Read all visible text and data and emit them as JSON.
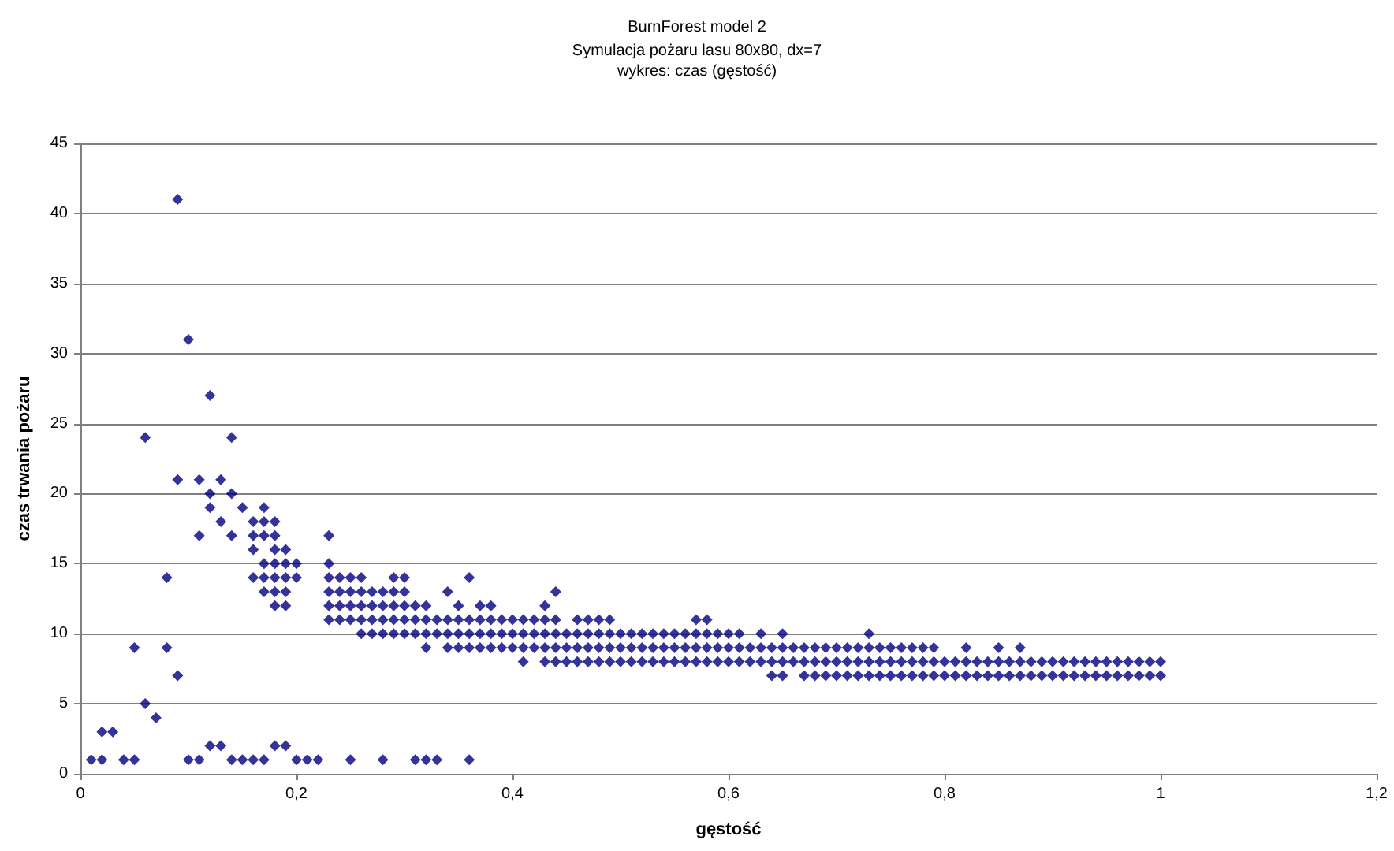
{
  "chart_data": {
    "type": "scatter",
    "title": "BurnForest model 2",
    "subtitle": "Symulacja pożaru lasu 80x80, dx=7\nwykres: czas (gęstość)",
    "xlabel": "gęstość",
    "ylabel": "czas trwania pożaru",
    "xlim": [
      0,
      1.2
    ],
    "xticks": [
      0,
      {
        "value": 0.2,
        "label": "0,2"
      },
      {
        "value": 0.4,
        "label": "0,4"
      },
      {
        "value": 0.6,
        "label": "0,6"
      },
      {
        "value": 0.8,
        "label": "0,8"
      },
      1,
      {
        "value": 1.2,
        "label": "1,2"
      }
    ],
    "ylim": [
      0,
      45
    ],
    "yticks": [
      0,
      5,
      10,
      15,
      20,
      25,
      30,
      35,
      40,
      45
    ],
    "grid": "y",
    "marker": "diamond",
    "series": [
      {
        "color": "#000080",
        "x": [
          0.01,
          0.02,
          0.04,
          0.05,
          0.1,
          0.11,
          0.14,
          0.15,
          0.16,
          0.17,
          0.2,
          0.21,
          0.22,
          0.25,
          0.28,
          0.31,
          0.32,
          0.33,
          0.36
        ],
        "values": [
          1,
          1,
          1,
          1,
          1,
          1,
          1,
          1,
          1,
          1,
          1,
          1,
          1,
          1,
          1,
          1,
          1,
          1,
          1
        ]
      },
      {
        "color": "#000080",
        "x": [
          0.12,
          0.13,
          0.18,
          0.19
        ],
        "values": [
          2,
          2,
          2,
          2
        ]
      },
      {
        "color": "#000080",
        "x": [
          0.02,
          0.03
        ],
        "values": [
          3,
          3
        ]
      },
      {
        "color": "#000080",
        "x": [
          0.07
        ],
        "values": [
          4
        ]
      },
      {
        "color": "#000080",
        "x": [
          0.06
        ],
        "values": [
          5
        ]
      },
      {
        "color": "#000080",
        "x": [
          0.09,
          0.64,
          0.65,
          0.67,
          0.68,
          0.69,
          0.7,
          0.71,
          0.72,
          0.73,
          0.74,
          0.75,
          0.76,
          0.77,
          0.78,
          0.79,
          0.8,
          0.81,
          0.82,
          0.83,
          0.84,
          0.85,
          0.86,
          0.87,
          0.88,
          0.89,
          0.9,
          0.91,
          0.92,
          0.93,
          0.94,
          0.95,
          0.96,
          0.97,
          0.98,
          0.99,
          1
        ],
        "values": [
          7,
          7,
          7,
          7,
          7,
          7,
          7,
          7,
          7,
          7,
          7,
          7,
          7,
          7,
          7,
          7,
          7,
          7,
          7,
          7,
          7,
          7,
          7,
          7,
          7,
          7,
          7,
          7,
          7,
          7,
          7,
          7,
          7,
          7,
          7,
          7,
          7
        ]
      },
      {
        "color": "#000080",
        "x": [
          0.41,
          0.43,
          0.44,
          0.45,
          0.46,
          0.47,
          0.48,
          0.49,
          0.5,
          0.51,
          0.52,
          0.53,
          0.54,
          0.55,
          0.56,
          0.57,
          0.58,
          0.59,
          0.6,
          0.61,
          0.62,
          0.63,
          0.64,
          0.65,
          0.66,
          0.67,
          0.68,
          0.69,
          0.7,
          0.71,
          0.72,
          0.73,
          0.74,
          0.75,
          0.76,
          0.77,
          0.78,
          0.79,
          0.8,
          0.81,
          0.82,
          0.83,
          0.84,
          0.85,
          0.86,
          0.87,
          0.88,
          0.89,
          0.9,
          0.91,
          0.92,
          0.93,
          0.94,
          0.95,
          0.96,
          0.97,
          0.98,
          0.99,
          1
        ],
        "values": [
          8,
          8,
          8,
          8,
          8,
          8,
          8,
          8,
          8,
          8,
          8,
          8,
          8,
          8,
          8,
          8,
          8,
          8,
          8,
          8,
          8,
          8,
          8,
          8,
          8,
          8,
          8,
          8,
          8,
          8,
          8,
          8,
          8,
          8,
          8,
          8,
          8,
          8,
          8,
          8,
          8,
          8,
          8,
          8,
          8,
          8,
          8,
          8,
          8,
          8,
          8,
          8,
          8,
          8,
          8,
          8,
          8,
          8,
          8
        ]
      },
      {
        "color": "#000080",
        "x": [
          0.05,
          0.08,
          0.32,
          0.34,
          0.35,
          0.36,
          0.37,
          0.38,
          0.39,
          0.4,
          0.41,
          0.42,
          0.43,
          0.44,
          0.45,
          0.46,
          0.47,
          0.48,
          0.49,
          0.5,
          0.51,
          0.52,
          0.53,
          0.54,
          0.55,
          0.56,
          0.57,
          0.58,
          0.59,
          0.6,
          0.61,
          0.62,
          0.63,
          0.64,
          0.65,
          0.66,
          0.67,
          0.68,
          0.69,
          0.7,
          0.71,
          0.72,
          0.73,
          0.74,
          0.75,
          0.76,
          0.77,
          0.78,
          0.79,
          0.82,
          0.85,
          0.87
        ],
        "values": [
          9,
          9,
          9,
          9,
          9,
          9,
          9,
          9,
          9,
          9,
          9,
          9,
          9,
          9,
          9,
          9,
          9,
          9,
          9,
          9,
          9,
          9,
          9,
          9,
          9,
          9,
          9,
          9,
          9,
          9,
          9,
          9,
          9,
          9,
          9,
          9,
          9,
          9,
          9,
          9,
          9,
          9,
          9,
          9,
          9,
          9,
          9,
          9,
          9,
          9,
          9,
          9
        ]
      },
      {
        "color": "#000080",
        "x": [
          0.26,
          0.27,
          0.28,
          0.29,
          0.3,
          0.31,
          0.32,
          0.33,
          0.34,
          0.35,
          0.36,
          0.37,
          0.38,
          0.39,
          0.4,
          0.41,
          0.42,
          0.43,
          0.44,
          0.45,
          0.46,
          0.47,
          0.48,
          0.49,
          0.5,
          0.51,
          0.52,
          0.53,
          0.54,
          0.55,
          0.56,
          0.57,
          0.58,
          0.59,
          0.6,
          0.61,
          0.63,
          0.65,
          0.73
        ],
        "values": [
          10,
          10,
          10,
          10,
          10,
          10,
          10,
          10,
          10,
          10,
          10,
          10,
          10,
          10,
          10,
          10,
          10,
          10,
          10,
          10,
          10,
          10,
          10,
          10,
          10,
          10,
          10,
          10,
          10,
          10,
          10,
          10,
          10,
          10,
          10,
          10,
          10,
          10,
          10
        ]
      },
      {
        "color": "#000080",
        "x": [
          0.23,
          0.24,
          0.25,
          0.26,
          0.27,
          0.28,
          0.29,
          0.3,
          0.31,
          0.32,
          0.33,
          0.34,
          0.35,
          0.36,
          0.37,
          0.38,
          0.39,
          0.4,
          0.41,
          0.42,
          0.43,
          0.44,
          0.46,
          0.47,
          0.48,
          0.49,
          0.57,
          0.58
        ],
        "values": [
          11,
          11,
          11,
          11,
          11,
          11,
          11,
          11,
          11,
          11,
          11,
          11,
          11,
          11,
          11,
          11,
          11,
          11,
          11,
          11,
          11,
          11,
          11,
          11,
          11,
          11,
          11,
          11
        ]
      },
      {
        "color": "#000080",
        "x": [
          0.18,
          0.19,
          0.23,
          0.24,
          0.25,
          0.26,
          0.27,
          0.28,
          0.29,
          0.3,
          0.31,
          0.32,
          0.35,
          0.37,
          0.38,
          0.43
        ],
        "values": [
          12,
          12,
          12,
          12,
          12,
          12,
          12,
          12,
          12,
          12,
          12,
          12,
          12,
          12,
          12,
          12
        ]
      },
      {
        "color": "#000080",
        "x": [
          0.17,
          0.18,
          0.19,
          0.23,
          0.24,
          0.25,
          0.26,
          0.27,
          0.28,
          0.29,
          0.3,
          0.34,
          0.44
        ],
        "values": [
          13,
          13,
          13,
          13,
          13,
          13,
          13,
          13,
          13,
          13,
          13,
          13,
          13
        ]
      },
      {
        "color": "#000080",
        "x": [
          0.08,
          0.16,
          0.17,
          0.18,
          0.19,
          0.2,
          0.23,
          0.24,
          0.25,
          0.26,
          0.29,
          0.3,
          0.36
        ],
        "values": [
          14,
          14,
          14,
          14,
          14,
          14,
          14,
          14,
          14,
          14,
          14,
          14,
          14
        ]
      },
      {
        "color": "#000080",
        "x": [
          0.17,
          0.18,
          0.19,
          0.2,
          0.23
        ],
        "values": [
          15,
          15,
          15,
          15,
          15
        ]
      },
      {
        "color": "#000080",
        "x": [
          0.16,
          0.18,
          0.19
        ],
        "values": [
          16,
          16,
          16
        ]
      },
      {
        "color": "#000080",
        "x": [
          0.11,
          0.14,
          0.16,
          0.17,
          0.18,
          0.23
        ],
        "values": [
          17,
          17,
          17,
          17,
          17,
          17
        ]
      },
      {
        "color": "#000080",
        "x": [
          0.13,
          0.16,
          0.17,
          0.18
        ],
        "values": [
          18,
          18,
          18,
          18
        ]
      },
      {
        "color": "#000080",
        "x": [
          0.12,
          0.15,
          0.17
        ],
        "values": [
          19,
          19,
          19
        ]
      },
      {
        "color": "#000080",
        "x": [
          0.12,
          0.14
        ],
        "values": [
          20,
          20
        ]
      },
      {
        "color": "#000080",
        "x": [
          0.09,
          0.11,
          0.13
        ],
        "values": [
          21,
          21,
          21
        ]
      },
      {
        "color": "#000080",
        "x": [
          0.06,
          0.14
        ],
        "values": [
          24,
          24
        ]
      },
      {
        "color": "#000080",
        "x": [
          0.12
        ],
        "values": [
          27
        ]
      },
      {
        "color": "#000080",
        "x": [
          0.1
        ],
        "values": [
          31
        ]
      },
      {
        "color": "#000080",
        "x": [
          0.09
        ],
        "values": [
          41
        ]
      }
    ]
  }
}
